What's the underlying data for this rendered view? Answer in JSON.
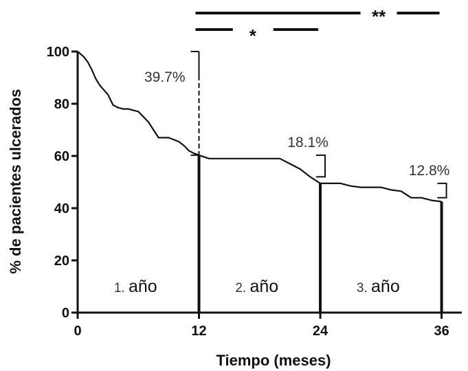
{
  "chart_data": {
    "type": "line",
    "title": "",
    "xlabel": "Tiempo (meses)",
    "ylabel": "% de pacientes ulcerados",
    "xlim": [
      0,
      38
    ],
    "ylim": [
      0,
      100
    ],
    "xticks": [
      0,
      12,
      24,
      36
    ],
    "yticks": [
      0,
      20,
      40,
      60,
      80,
      100
    ],
    "grid": false,
    "legend": "none",
    "series": [
      {
        "x": [
          0,
          0.6,
          1,
          1.4,
          1.8,
          2.2,
          3,
          3.5,
          4,
          4.5,
          5,
          6,
          7,
          7.5,
          8,
          8.5,
          9,
          10,
          10.5,
          11,
          11.5,
          12,
          13,
          14,
          16,
          18,
          20,
          21,
          22,
          23,
          24,
          25,
          26,
          27,
          28,
          30,
          31,
          32,
          33,
          34,
          35,
          36
        ],
        "y": [
          100,
          98,
          96,
          93,
          89.5,
          87,
          83.5,
          79.5,
          78.5,
          78,
          78,
          77,
          73,
          70,
          67,
          67,
          67,
          65.5,
          64,
          62,
          61,
          60.3,
          59,
          59,
          59,
          59,
          59,
          57,
          55,
          52,
          49.5,
          49.5,
          49.5,
          48.5,
          48,
          48,
          47,
          46.5,
          44,
          44,
          43,
          42.5
        ]
      }
    ],
    "annotations": [
      {
        "text": "39.7%",
        "x": 12,
        "y_top": 100,
        "y_bottom": 60.3
      },
      {
        "text": "18.1%",
        "x": 24,
        "y_top": 60.3,
        "y_bottom": 52
      },
      {
        "text": "12.8%",
        "x": 36,
        "y_top": 49.5,
        "y_bottom": 44
      }
    ],
    "year_labels": [
      {
        "num": "1.",
        "word": "año",
        "center_x": 6
      },
      {
        "num": "2.",
        "word": "año",
        "center_x": 18
      },
      {
        "num": "3.",
        "word": "año",
        "center_x": 30
      }
    ],
    "year_dividers": [
      12,
      24,
      36
    ],
    "significance": [
      {
        "label": "**",
        "from": 12,
        "to": 36
      },
      {
        "label": "*",
        "from": 12,
        "to": 24
      }
    ]
  }
}
